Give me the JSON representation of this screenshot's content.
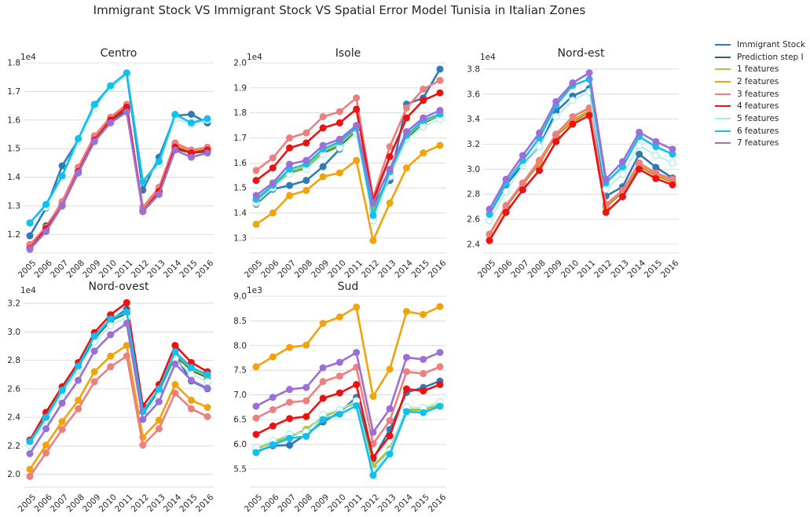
{
  "figure": {
    "title": "Immigrant Stock VS Immigrant Stock VS Spatial Error Model Tunisia in Italian Zones"
  },
  "legend": [
    {
      "name": "Immigrant Stock",
      "color": "#2f7bb5"
    },
    {
      "name": "Prediction step I",
      "color": "#2a6b44"
    },
    {
      "name": "1 features",
      "color": "#a8c63c"
    },
    {
      "name": "2 features",
      "color": "#f0a30a"
    },
    {
      "name": "3 features",
      "color": "#ee7f7f"
    },
    {
      "name": "4 features",
      "color": "#ee1111"
    },
    {
      "name": "5 features",
      "color": "#a6ece8"
    },
    {
      "name": "6 features",
      "color": "#10c0f0"
    },
    {
      "name": "7 features",
      "color": "#9a6fd6"
    }
  ],
  "chart_data": [
    {
      "type": "line",
      "title": "Centro",
      "scale_label": "1e4",
      "scale": 10000,
      "x": [
        "2005",
        "2006",
        "2007",
        "2008",
        "2009",
        "2010",
        "2011",
        "2012",
        "2013",
        "2014",
        "2015",
        "2016"
      ],
      "ylim": [
        11350,
        18000
      ],
      "yticks": [
        12000,
        13000,
        14000,
        15000,
        16000,
        17000,
        18000
      ],
      "series": [
        {
          "name": "Immigrant Stock",
          "values": [
            11950,
            12920,
            14400,
            15300,
            16500,
            17150,
            17620,
            13550,
            14700,
            16150,
            16200,
            15900
          ]
        },
        {
          "name": "Prediction step I",
          "values": [
            11500,
            12300,
            13000,
            14200,
            15250,
            15950,
            16350,
            12850,
            13500,
            15000,
            14850,
            14900
          ]
        },
        {
          "name": "1 features",
          "values": [
            11550,
            12150,
            13050,
            14250,
            15350,
            16000,
            16450,
            12900,
            13550,
            15100,
            14900,
            15000
          ]
        },
        {
          "name": "2 features",
          "values": [
            11600,
            12200,
            13100,
            14300,
            15400,
            16050,
            16500,
            12950,
            13600,
            15150,
            14950,
            15000
          ]
        },
        {
          "name": "3 features",
          "values": [
            11650,
            12250,
            13150,
            14350,
            15450,
            16100,
            16550,
            12950,
            13650,
            15200,
            14950,
            15050
          ]
        },
        {
          "name": "4 features",
          "values": [
            11500,
            12200,
            13000,
            14200,
            15300,
            16000,
            16450,
            12800,
            13500,
            15050,
            14850,
            14950
          ]
        },
        {
          "name": "5 features",
          "values": [
            12400,
            12950,
            14000,
            15250,
            16400,
            17150,
            17600,
            13850,
            14450,
            16050,
            15850,
            16000
          ]
        },
        {
          "name": "6 features",
          "values": [
            12400,
            13050,
            14050,
            15350,
            16550,
            17200,
            17650,
            13850,
            14550,
            16200,
            15900,
            16050
          ]
        },
        {
          "name": "7 features",
          "values": [
            11480,
            12100,
            13000,
            14150,
            15250,
            15900,
            16280,
            12800,
            13400,
            14950,
            14700,
            14850
          ]
        }
      ]
    },
    {
      "type": "line",
      "title": "Isole",
      "scale_label": "1e4",
      "scale": 10000,
      "x": [
        "2005",
        "2006",
        "2007",
        "2008",
        "2009",
        "2010",
        "2011",
        "2012",
        "2013",
        "2014",
        "2015",
        "2016"
      ],
      "ylim": [
        12400,
        20000
      ],
      "yticks": [
        13000,
        14000,
        15000,
        16000,
        17000,
        18000,
        19000,
        20000
      ],
      "series": [
        {
          "name": "Immigrant Stock",
          "values": [
            14350,
            14950,
            15100,
            15300,
            15850,
            16550,
            17450,
            14350,
            15300,
            18350,
            18600,
            19750
          ]
        },
        {
          "name": "Prediction step I",
          "values": [
            14500,
            15050,
            15600,
            15800,
            16400,
            16700,
            17300,
            14200,
            15500,
            17000,
            17600,
            17900
          ]
        },
        {
          "name": "1 features",
          "values": [
            14450,
            15050,
            15650,
            15850,
            16450,
            16750,
            17350,
            14100,
            15550,
            17050,
            17650,
            17900
          ]
        },
        {
          "name": "2 features",
          "values": [
            13550,
            14000,
            14700,
            14900,
            15450,
            15600,
            16100,
            12900,
            14400,
            15800,
            16400,
            16700
          ]
        },
        {
          "name": "3 features",
          "values": [
            15700,
            16200,
            17000,
            17200,
            17850,
            18050,
            18600,
            14600,
            16650,
            18200,
            18950,
            19300
          ]
        },
        {
          "name": "4 features",
          "values": [
            15300,
            15800,
            16600,
            16800,
            17400,
            17600,
            18150,
            14500,
            16250,
            17800,
            18500,
            18800
          ]
        },
        {
          "name": "5 features",
          "values": [
            14400,
            15000,
            15550,
            15750,
            16350,
            16600,
            17200,
            13700,
            15450,
            16950,
            17450,
            17750
          ]
        },
        {
          "name": "6 features",
          "values": [
            14550,
            15100,
            15750,
            15950,
            16550,
            16850,
            17400,
            13900,
            15650,
            17100,
            17700,
            17950
          ]
        },
        {
          "name": "7 features",
          "values": [
            14700,
            15200,
            15950,
            16100,
            16700,
            16950,
            17500,
            14400,
            15750,
            17250,
            17800,
            18100
          ]
        }
      ]
    },
    {
      "type": "line",
      "title": "Nord-est",
      "scale_label": "1e4",
      "scale": 10000,
      "x": [
        "2005",
        "2006",
        "2007",
        "2008",
        "2009",
        "2010",
        "2011",
        "2012",
        "2013",
        "2014",
        "2015",
        "2016"
      ],
      "ylim": [
        23300,
        38500
      ],
      "yticks": [
        24000,
        26000,
        28000,
        30000,
        32000,
        34000,
        36000,
        38000
      ],
      "series": [
        {
          "name": "Immigrant Stock",
          "values": [
            26400,
            28750,
            30350,
            31800,
            34600,
            35850,
            36450,
            27850,
            28600,
            31200,
            30150,
            29300
          ]
        },
        {
          "name": "Prediction step I",
          "values": [
            24800,
            27000,
            28800,
            30500,
            32700,
            33800,
            34600,
            27000,
            28200,
            30300,
            29500,
            29000
          ]
        },
        {
          "name": "1 features",
          "values": [
            24800,
            27100,
            28900,
            30600,
            32800,
            33900,
            34700,
            27100,
            28300,
            30400,
            29600,
            29100
          ]
        },
        {
          "name": "2 features",
          "values": [
            24750,
            27050,
            28850,
            30550,
            32750,
            33850,
            34650,
            27050,
            28250,
            30350,
            29550,
            29050
          ]
        },
        {
          "name": "3 features",
          "values": [
            24800,
            27100,
            28900,
            30700,
            32800,
            34200,
            34900,
            27200,
            28300,
            30500,
            29700,
            29200
          ]
        },
        {
          "name": "4 features",
          "values": [
            24300,
            26550,
            28350,
            29900,
            32200,
            33600,
            34300,
            26550,
            27800,
            30000,
            29250,
            28750
          ]
        },
        {
          "name": "5 features",
          "values": [
            25900,
            28200,
            30300,
            31800,
            34200,
            35500,
            36200,
            28400,
            29600,
            31900,
            31100,
            30500
          ]
        },
        {
          "name": "6 features",
          "values": [
            26400,
            28900,
            30700,
            32500,
            35100,
            36700,
            37200,
            28900,
            30200,
            32600,
            31800,
            31200
          ]
        },
        {
          "name": "7 features",
          "values": [
            26800,
            29200,
            31100,
            32900,
            35400,
            36900,
            37700,
            29200,
            30600,
            32950,
            32200,
            31600
          ]
        }
      ]
    },
    {
      "type": "line",
      "title": "Nord-ovest",
      "scale_label": "1e4",
      "scale": 10000,
      "x": [
        "2005",
        "2006",
        "2007",
        "2008",
        "2009",
        "2010",
        "2011",
        "2012",
        "2013",
        "2014",
        "2015",
        "2016"
      ],
      "ylim": [
        19100,
        32500
      ],
      "yticks": [
        20000,
        22000,
        24000,
        26000,
        28000,
        30000,
        32000
      ],
      "series": [
        {
          "name": "Immigrant Stock",
          "values": [
            22400,
            24100,
            25900,
            27600,
            29500,
            30800,
            31600,
            24350,
            25900,
            28350,
            26550,
            26000
          ]
        },
        {
          "name": "Prediction step I",
          "values": [
            22200,
            24000,
            25900,
            27600,
            29600,
            30800,
            31300,
            24300,
            25900,
            28400,
            27300,
            26800
          ]
        },
        {
          "name": "1 features",
          "values": [
            22250,
            24050,
            25950,
            27650,
            29650,
            30900,
            31400,
            24400,
            26000,
            28500,
            27400,
            26900
          ]
        },
        {
          "name": "2 features",
          "values": [
            20350,
            22050,
            23700,
            25200,
            27200,
            28300,
            29050,
            22600,
            23800,
            26300,
            25200,
            24700
          ]
        },
        {
          "name": "3 features",
          "values": [
            19850,
            21500,
            23150,
            24600,
            26500,
            27550,
            28300,
            22050,
            23200,
            25700,
            24600,
            24050
          ]
        },
        {
          "name": "4 features",
          "values": [
            22400,
            24350,
            26150,
            27850,
            29950,
            31200,
            32050,
            24800,
            26300,
            29050,
            27850,
            27200
          ]
        },
        {
          "name": "5 features",
          "values": [
            22050,
            23800,
            25600,
            27300,
            29300,
            30450,
            31000,
            24100,
            25500,
            28100,
            27000,
            26500
          ]
        },
        {
          "name": "6 features",
          "values": [
            22300,
            24000,
            25900,
            27600,
            29700,
            30900,
            31400,
            24400,
            26000,
            28600,
            27500,
            27000
          ]
        },
        {
          "name": "7 features",
          "values": [
            21450,
            23200,
            25000,
            26600,
            28650,
            29800,
            30600,
            23850,
            25100,
            27750,
            26600,
            26050
          ]
        }
      ]
    },
    {
      "type": "line",
      "title": "Sud",
      "scale_label": "1e3",
      "scale": 1000,
      "x": [
        "2005",
        "2006",
        "2007",
        "2008",
        "2009",
        "2010",
        "2011",
        "2012",
        "2013",
        "2014",
        "2015",
        "2016"
      ],
      "ylim": [
        5130,
        9000
      ],
      "yticks": [
        5500,
        6000,
        6500,
        7000,
        7500,
        8000,
        8500,
        9000
      ],
      "series": [
        {
          "name": "Immigrant Stock",
          "values": [
            5850,
            5970,
            5980,
            6200,
            6450,
            6650,
            6950,
            5700,
            6300,
            7050,
            7150,
            7280
          ]
        },
        {
          "name": "Prediction step I",
          "values": [
            5900,
            6050,
            6150,
            6300,
            6550,
            6700,
            6850,
            5550,
            5900,
            6700,
            6700,
            6800
          ]
        },
        {
          "name": "1 features",
          "values": [
            5900,
            6050,
            6150,
            6300,
            6550,
            6700,
            6850,
            5550,
            5900,
            6700,
            6700,
            6800
          ]
        },
        {
          "name": "2 features",
          "values": [
            7570,
            7770,
            7960,
            8010,
            8450,
            8580,
            8780,
            6970,
            7520,
            8690,
            8630,
            8790
          ]
        },
        {
          "name": "3 features",
          "values": [
            6530,
            6700,
            6850,
            6880,
            7270,
            7380,
            7560,
            6010,
            6480,
            7470,
            7430,
            7570
          ]
        },
        {
          "name": "4 features",
          "values": [
            6200,
            6370,
            6520,
            6560,
            6930,
            7040,
            7210,
            5730,
            6170,
            7120,
            7080,
            7210
          ]
        },
        {
          "name": "5 features",
          "values": [
            5930,
            6070,
            6200,
            6250,
            6600,
            6700,
            6880,
            5450,
            5870,
            6760,
            6740,
            6860
          ]
        },
        {
          "name": "6 features",
          "values": [
            5830,
            5990,
            6120,
            6160,
            6500,
            6610,
            6780,
            5370,
            5800,
            6660,
            6640,
            6770
          ]
        },
        {
          "name": "7 features",
          "values": [
            6770,
            6950,
            7110,
            7150,
            7550,
            7660,
            7860,
            6240,
            6720,
            7760,
            7720,
            7860
          ]
        }
      ]
    }
  ]
}
